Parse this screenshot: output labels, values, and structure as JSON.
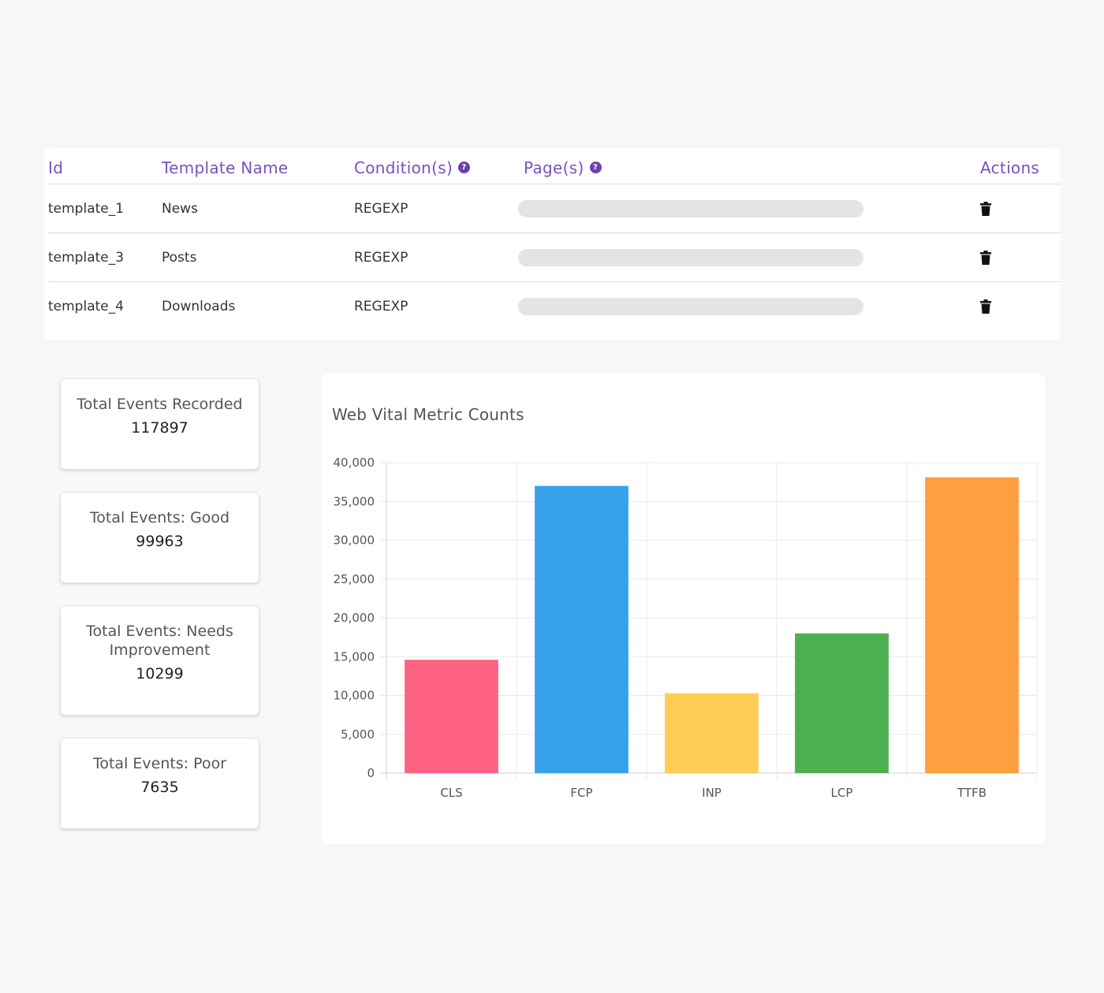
{
  "templates_table": {
    "headers": {
      "id": "Id",
      "name": "Template Name",
      "conditions": "Condition(s)",
      "pages": "Page(s)",
      "actions": "Actions"
    },
    "help_icon": "question-circle-icon",
    "action_icon": "trash-icon",
    "rows": [
      {
        "id": "template_1",
        "name": "News",
        "condition": "REGEXP"
      },
      {
        "id": "template_3",
        "name": "Posts",
        "condition": "REGEXP"
      },
      {
        "id": "template_4",
        "name": "Downloads",
        "condition": "REGEXP"
      }
    ]
  },
  "stats": [
    {
      "label": "Total Events Recorded",
      "value": "117897"
    },
    {
      "label": "Total Events: Good",
      "value": "99963"
    },
    {
      "label": "Total Events: Needs Improvement",
      "value": "10299"
    },
    {
      "label": "Total Events: Poor",
      "value": "7635"
    }
  ],
  "colors": {
    "accent": "#7b4fc0",
    "CLS": "#ff6384",
    "FCP": "#36a2eb",
    "INP": "#ffcd56",
    "LCP": "#4caf50",
    "TTFB": "#ff9f40"
  },
  "chart_data": {
    "type": "bar",
    "title": "Web Vital Metric Counts",
    "categories": [
      "CLS",
      "FCP",
      "INP",
      "LCP",
      "TTFB"
    ],
    "values": [
      14600,
      37000,
      10300,
      18000,
      38100
    ],
    "ylim": [
      0,
      40000
    ],
    "yticks": [
      0,
      5000,
      10000,
      15000,
      20000,
      25000,
      30000,
      35000,
      40000
    ],
    "ytick_labels": [
      "0",
      "5,000",
      "10,000",
      "15,000",
      "20,000",
      "25,000",
      "30,000",
      "35,000",
      "40,000"
    ],
    "grid": true,
    "legend": "none"
  }
}
